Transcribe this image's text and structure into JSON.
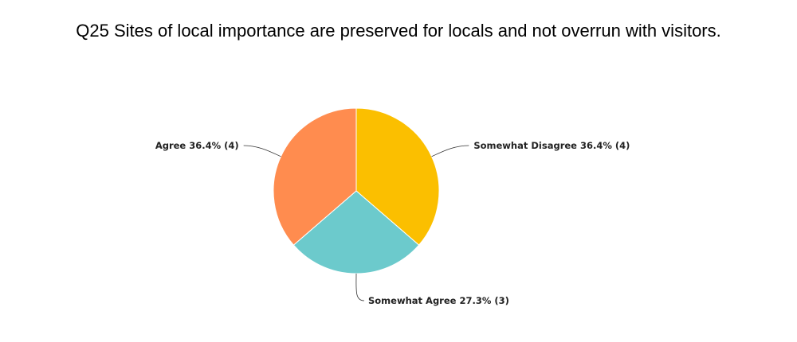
{
  "chart_data": {
    "type": "pie",
    "title": "Q25 Sites of local importance are preserved for locals and not overrun with visitors.",
    "categories": [
      "Somewhat Disagree",
      "Somewhat Agree",
      "Agree"
    ],
    "values": [
      36.4,
      27.3,
      36.4
    ],
    "value_labels": [
      "36.4% (4)",
      "27.3% (3)",
      "36.4% (4)"
    ],
    "colors": [
      "#fbbf00",
      "#6ccacc",
      "#ff8c4f"
    ]
  }
}
